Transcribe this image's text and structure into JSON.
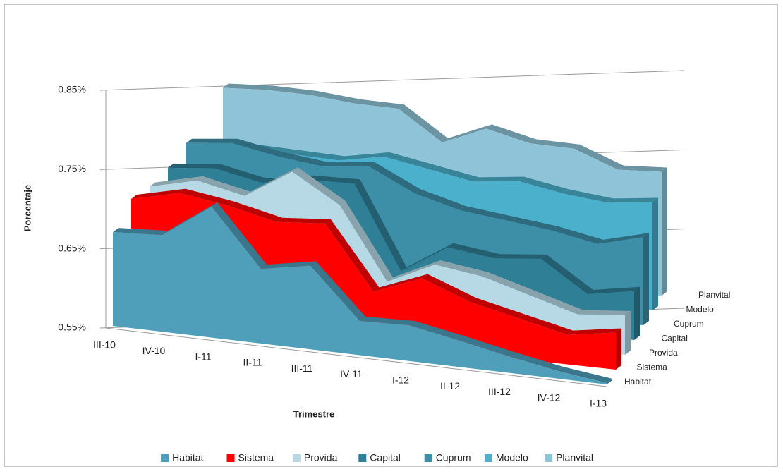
{
  "chart_data": {
    "type": "area3d",
    "x_label": "Trimestre",
    "y_label": "Porcentaje",
    "categories": [
      "III-10",
      "IV-10",
      "I-11",
      "II-11",
      "III-11",
      "IV-11",
      "I-12",
      "II-12",
      "III-12",
      "IV-12",
      "I-13"
    ],
    "ylim": [
      0.55,
      0.85
    ],
    "yticks": [
      {
        "value": 0.55,
        "label": "0.55%"
      },
      {
        "value": 0.65,
        "label": "0.65%"
      },
      {
        "value": 0.75,
        "label": "0.75%"
      },
      {
        "value": 0.85,
        "label": "0.85%"
      }
    ],
    "grid": true,
    "legend": "bottom",
    "series": [
      {
        "name": "Habitat",
        "color": "#4f9fba",
        "values": [
          0.673,
          0.677,
          0.722,
          0.648,
          0.66,
          0.595,
          0.597,
          0.585,
          0.572,
          0.56,
          0.552
        ]
      },
      {
        "name": "Sistema",
        "color": "#ff0000",
        "values": [
          0.71,
          0.725,
          0.715,
          0.7,
          0.705,
          0.62,
          0.645,
          0.62,
          0.605,
          0.59,
          0.6
        ]
      },
      {
        "name": "Provida",
        "color": "#b7d9e6",
        "values": [
          0.72,
          0.735,
          0.72,
          0.76,
          0.72,
          0.62,
          0.65,
          0.64,
          0.62,
          0.6,
          0.605
        ]
      },
      {
        "name": "Capital",
        "color": "#2f7f96",
        "values": [
          0.74,
          0.745,
          0.73,
          0.74,
          0.74,
          0.62,
          0.66,
          0.65,
          0.655,
          0.61,
          0.62
        ]
      },
      {
        "name": "Cuprum",
        "color": "#3d8fa8",
        "values": [
          0.77,
          0.775,
          0.76,
          0.75,
          0.755,
          0.72,
          0.7,
          0.69,
          0.68,
          0.665,
          0.68
        ]
      },
      {
        "name": "Modelo",
        "color": "#4bb0cc",
        "values": [
          0.76,
          0.76,
          0.755,
          0.75,
          0.76,
          0.745,
          0.73,
          0.735,
          0.72,
          0.71,
          0.715
        ]
      },
      {
        "name": "Planvital",
        "color": "#8fc4d8",
        "values": [
          0.845,
          0.845,
          0.84,
          0.83,
          0.825,
          0.775,
          0.8,
          0.78,
          0.775,
          0.745,
          0.745
        ]
      }
    ]
  }
}
